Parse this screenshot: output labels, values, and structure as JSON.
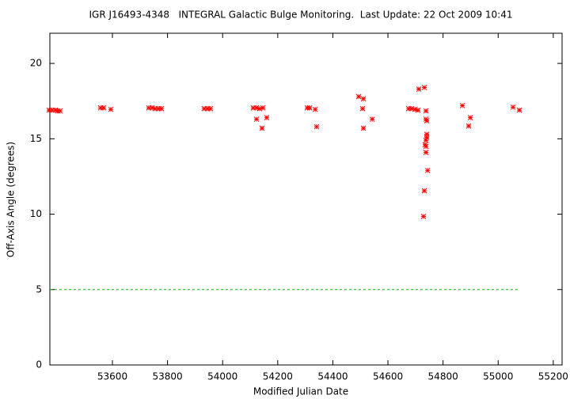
{
  "chart_data": {
    "type": "scatter",
    "title": "IGR J16493-4348   INTEGRAL Galactic Bulge Monitoring.  Last Update: 22 Oct 2009 10:41",
    "x_label": "Modified Julian Date",
    "y_label": "Off-Axis Angle (degrees)",
    "xlim": [
      53373,
      55232
    ],
    "ylim": [
      0,
      22
    ],
    "xticks": [
      53600,
      53800,
      54000,
      54200,
      54400,
      54600,
      54800,
      55000,
      55200
    ],
    "yticks": [
      0,
      5,
      10,
      15,
      20
    ],
    "color": "#ff0000",
    "x": [
      53370,
      53381,
      53393,
      53401,
      53410,
      53557,
      53568,
      53594,
      53732,
      53744,
      53755,
      53767,
      53778,
      53933,
      53945,
      53956,
      54111,
      54123,
      54134,
      54146,
      54123,
      54143,
      54160,
      54307,
      54316,
      54336,
      54341,
      54494,
      54511,
      54508,
      54511,
      54543,
      54675,
      54686,
      54698,
      54712,
      54732,
      54709,
      54738,
      54738,
      54741,
      54741,
      54741,
      54738,
      54735,
      54738,
      54738,
      54744,
      54732,
      54729,
      54870,
      54899,
      54893,
      55054,
      55077
    ],
    "values": [
      16.9,
      16.9,
      16.9,
      16.85,
      16.85,
      17.05,
      17.05,
      16.95,
      17.05,
      17.05,
      17.0,
      17.0,
      17.0,
      17.0,
      17.0,
      17.0,
      17.05,
      17.05,
      17.0,
      17.05,
      16.3,
      15.7,
      16.4,
      17.05,
      17.05,
      16.95,
      15.8,
      17.8,
      17.65,
      17.0,
      15.7,
      16.3,
      17.0,
      17.0,
      16.95,
      18.3,
      18.4,
      16.9,
      16.85,
      16.3,
      16.2,
      15.3,
      15.1,
      14.9,
      14.6,
      14.5,
      14.1,
      12.9,
      11.55,
      9.85,
      17.2,
      16.4,
      15.85,
      17.1,
      16.9
    ],
    "hline": {
      "value": 5,
      "xlim": [
        53373,
        55080
      ],
      "color": "#00c000"
    }
  }
}
